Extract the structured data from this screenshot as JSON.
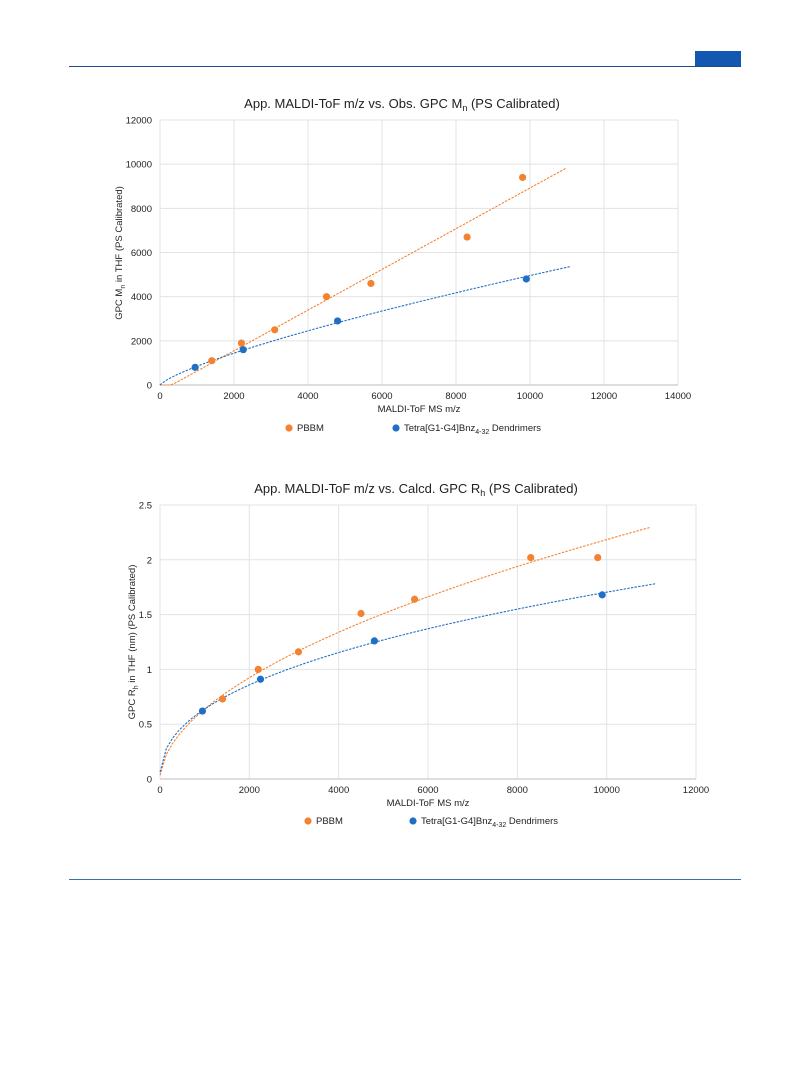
{
  "charts": [
    {
      "title": "App. MALDI-ToF m/z vs. Obs. GPC M",
      "title_sub": "n",
      "title_tail": " (PS Calibrated)",
      "xlabel": "MALDI-ToF MS m/z",
      "ylabel_pre": "GPC M",
      "ylabel_sub": "n",
      "ylabel_post": " in THF (PS Calibrated)",
      "xticks": [
        "0",
        "2000",
        "4000",
        "6000",
        "8000",
        "10000",
        "12000",
        "14000"
      ],
      "yticks": [
        "0",
        "2000",
        "4000",
        "6000",
        "8000",
        "10000",
        "12000"
      ],
      "legend": [
        {
          "label": "PBBM",
          "color": "#f58231"
        },
        {
          "label_pre": "Tetra[G1-G4]Bnz",
          "label_sub": "4-32",
          "label_post": " Dendrimers",
          "color": "#1f6fc5"
        }
      ]
    },
    {
      "title": "App. MALDI-ToF m/z vs. Calcd. GPC R",
      "title_sub": "h",
      "title_tail": " (PS Calibrated)",
      "xlabel": "MALDI-ToF MS m/z",
      "ylabel_pre": "GPC R",
      "ylabel_sub": "h",
      "ylabel_post": " in THF (nm) (PS Calibrated)",
      "xticks": [
        "0",
        "2000",
        "4000",
        "6000",
        "8000",
        "10000",
        "12000"
      ],
      "yticks": [
        "0",
        "0.5",
        "1",
        "1.5",
        "2",
        "2.5"
      ],
      "legend": [
        {
          "label": "PBBM",
          "color": "#f58231"
        },
        {
          "label_pre": "Tetra[G1-G4]Bnz",
          "label_sub": "4-32",
          "label_post": " Dendrimers",
          "color": "#1f6fc5"
        }
      ]
    }
  ],
  "chart_data": [
    {
      "type": "scatter",
      "title": "App. MALDI-ToF m/z vs. Obs. GPC Mn (PS Calibrated)",
      "xlabel": "MALDI-ToF MS m/z",
      "ylabel": "GPC Mn in THF (PS Calibrated)",
      "xlim": [
        0,
        14000
      ],
      "ylim": [
        0,
        12000
      ],
      "grid": true,
      "legend_position": "bottom",
      "series": [
        {
          "name": "PBBM",
          "color": "#f58231",
          "x": [
            1400,
            2200,
            3100,
            4500,
            5700,
            8300,
            9800
          ],
          "y": [
            1100,
            1900,
            2500,
            4000,
            4600,
            6700,
            9400
          ],
          "trendline": "linear"
        },
        {
          "name": "Tetra[G1-G4]Bnz4-32 Dendrimers",
          "color": "#1f6fc5",
          "x": [
            950,
            2250,
            4800,
            9900
          ],
          "y": [
            800,
            1600,
            2900,
            4800
          ],
          "trendline": "power"
        }
      ]
    },
    {
      "type": "scatter",
      "title": "App. MALDI-ToF m/z vs. Calcd. GPC Rh (PS Calibrated)",
      "xlabel": "MALDI-ToF MS m/z",
      "ylabel": "GPC Rh in THF (nm) (PS Calibrated)",
      "xlim": [
        0,
        12000
      ],
      "ylim": [
        0,
        2.5
      ],
      "grid": true,
      "legend_position": "bottom",
      "series": [
        {
          "name": "PBBM",
          "color": "#f58231",
          "x": [
            1400,
            2200,
            3100,
            4500,
            5700,
            8300,
            9800
          ],
          "y": [
            0.73,
            1.0,
            1.16,
            1.51,
            1.64,
            2.02,
            2.02
          ],
          "trendline": "power"
        },
        {
          "name": "Tetra[G1-G4]Bnz4-32 Dendrimers",
          "color": "#1f6fc5",
          "x": [
            950,
            2250,
            4800,
            9900
          ],
          "y": [
            0.62,
            0.91,
            1.26,
            1.68
          ],
          "trendline": "power"
        }
      ]
    }
  ]
}
